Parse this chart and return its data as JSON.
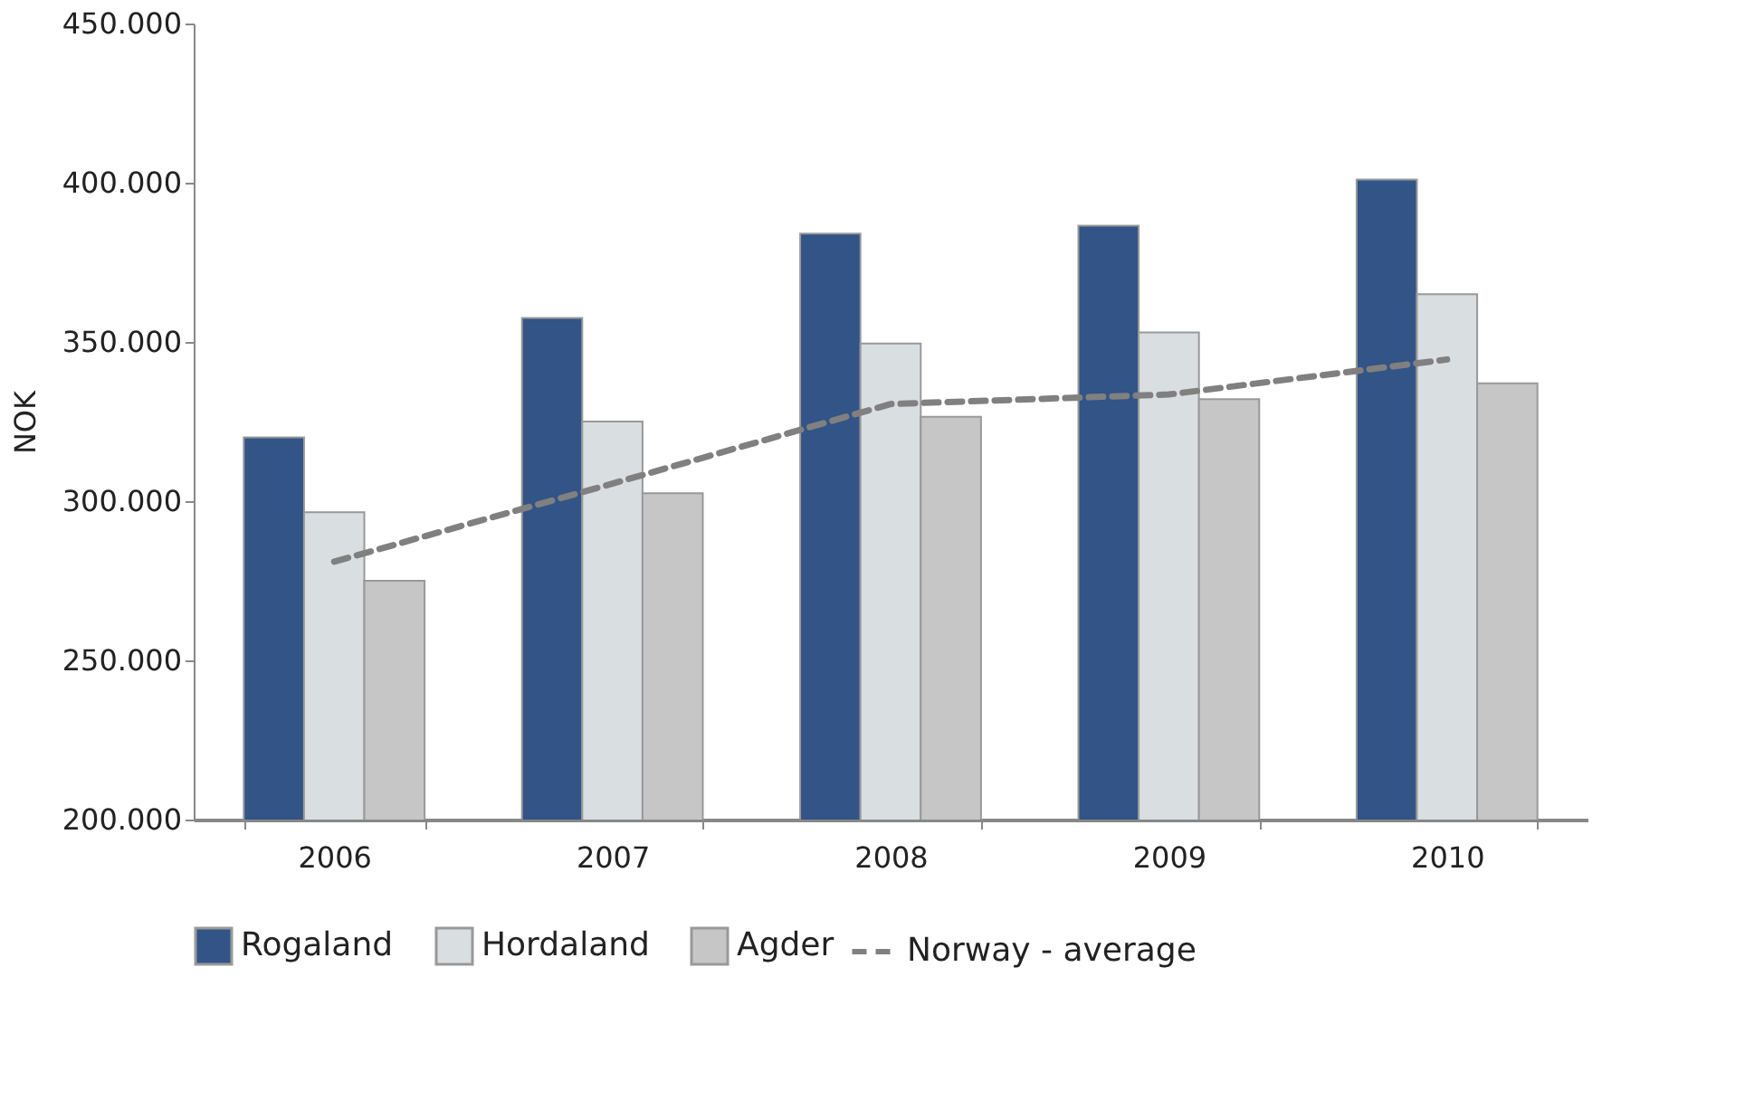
{
  "chart_data": {
    "type": "bar",
    "ylabel": "NOK",
    "categories": [
      "2006",
      "2007",
      "2008",
      "2009",
      "2010"
    ],
    "series": [
      {
        "name": "Rogaland",
        "color": "#325486",
        "values": [
          320000,
          357500,
          384000,
          386500,
          401000
        ]
      },
      {
        "name": "Hordaland",
        "color": "#d9dee1",
        "values": [
          296500,
          325000,
          349500,
          353000,
          365000
        ]
      },
      {
        "name": "Agder",
        "color": "#c6c6c6",
        "values": [
          275000,
          302500,
          326500,
          332000,
          337000
        ]
      },
      {
        "name": "Norway - average",
        "color": "#808080",
        "type": "line",
        "line_style": "dashed",
        "values": [
          281000,
          305500,
          330500,
          333500,
          344500
        ]
      }
    ],
    "ylim": [
      200000,
      450000
    ],
    "yticks": [
      {
        "value": 200000,
        "label": "200.000"
      },
      {
        "value": 250000,
        "label": "250.000"
      },
      {
        "value": 300000,
        "label": "300.000"
      },
      {
        "value": 350000,
        "label": "350.000"
      },
      {
        "value": 400000,
        "label": "400.000"
      },
      {
        "value": 450000,
        "label": "450.000"
      }
    ],
    "grid": false,
    "legend": "bottom"
  }
}
